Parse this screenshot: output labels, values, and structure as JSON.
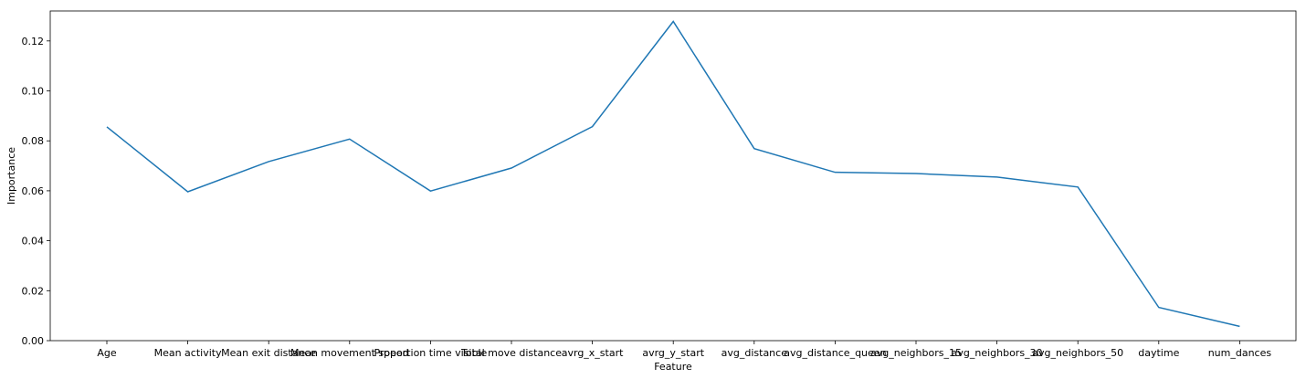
{
  "chart_data": {
    "type": "line",
    "xlabel": "Feature",
    "ylabel": "Importance",
    "ylim": [
      0.0,
      0.132
    ],
    "yticks": [
      0.0,
      0.02,
      0.04,
      0.06,
      0.08,
      0.1,
      0.12
    ],
    "ytick_labels": [
      "0.00",
      "0.02",
      "0.04",
      "0.06",
      "0.08",
      "0.10",
      "0.12"
    ],
    "grid": false,
    "legend": "none",
    "line_color": "#1f77b4",
    "categories": [
      "Age",
      "Mean activity",
      "Mean exit distance",
      "Mean movement speed",
      "Proportion time visible",
      "Total move distance",
      "avrg_x_start",
      "avrg_y_start",
      "avg_distance",
      "avg_distance_queen",
      "avg_neighbors_15",
      "avg_neighbors_30",
      "avg_neighbors_50",
      "daytime",
      "num_dances"
    ],
    "series": [
      {
        "values": [
          0.0856,
          0.0596,
          0.0717,
          0.0807,
          0.0599,
          0.0691,
          0.0857,
          0.1278,
          0.0769,
          0.0674,
          0.0669,
          0.0655,
          0.0615,
          0.0133,
          0.0057
        ]
      }
    ]
  }
}
